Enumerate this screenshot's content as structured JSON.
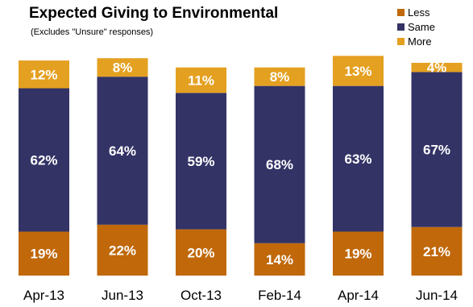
{
  "chart_data": {
    "type": "bar",
    "stacked": true,
    "title": "Expected Giving to Environmental",
    "subtitle": "(Excludes \"Unsure\" responses)",
    "categories": [
      "Apr-13",
      "Jun-13",
      "Oct-13",
      "Feb-14",
      "Apr-14",
      "Jun-14"
    ],
    "series": [
      {
        "name": "Less",
        "color": "#C0680A",
        "values": [
          19,
          22,
          20,
          14,
          19,
          21
        ],
        "labels": [
          "19%",
          "22%",
          "20%",
          "14%",
          "19%",
          "21%"
        ]
      },
      {
        "name": "Same",
        "color": "#333366",
        "values": [
          62,
          64,
          59,
          68,
          63,
          67
        ],
        "labels": [
          "62%",
          "64%",
          "59%",
          "68%",
          "63%",
          "67%"
        ]
      },
      {
        "name": "More",
        "color": "#E4A020",
        "values": [
          12,
          8,
          11,
          8,
          13,
          4
        ],
        "labels": [
          "12%",
          "8%",
          "11%",
          "8%",
          "13%",
          "4%"
        ]
      }
    ],
    "legend_position": "top-right",
    "grid": false,
    "ylim": [
      0,
      100
    ]
  }
}
